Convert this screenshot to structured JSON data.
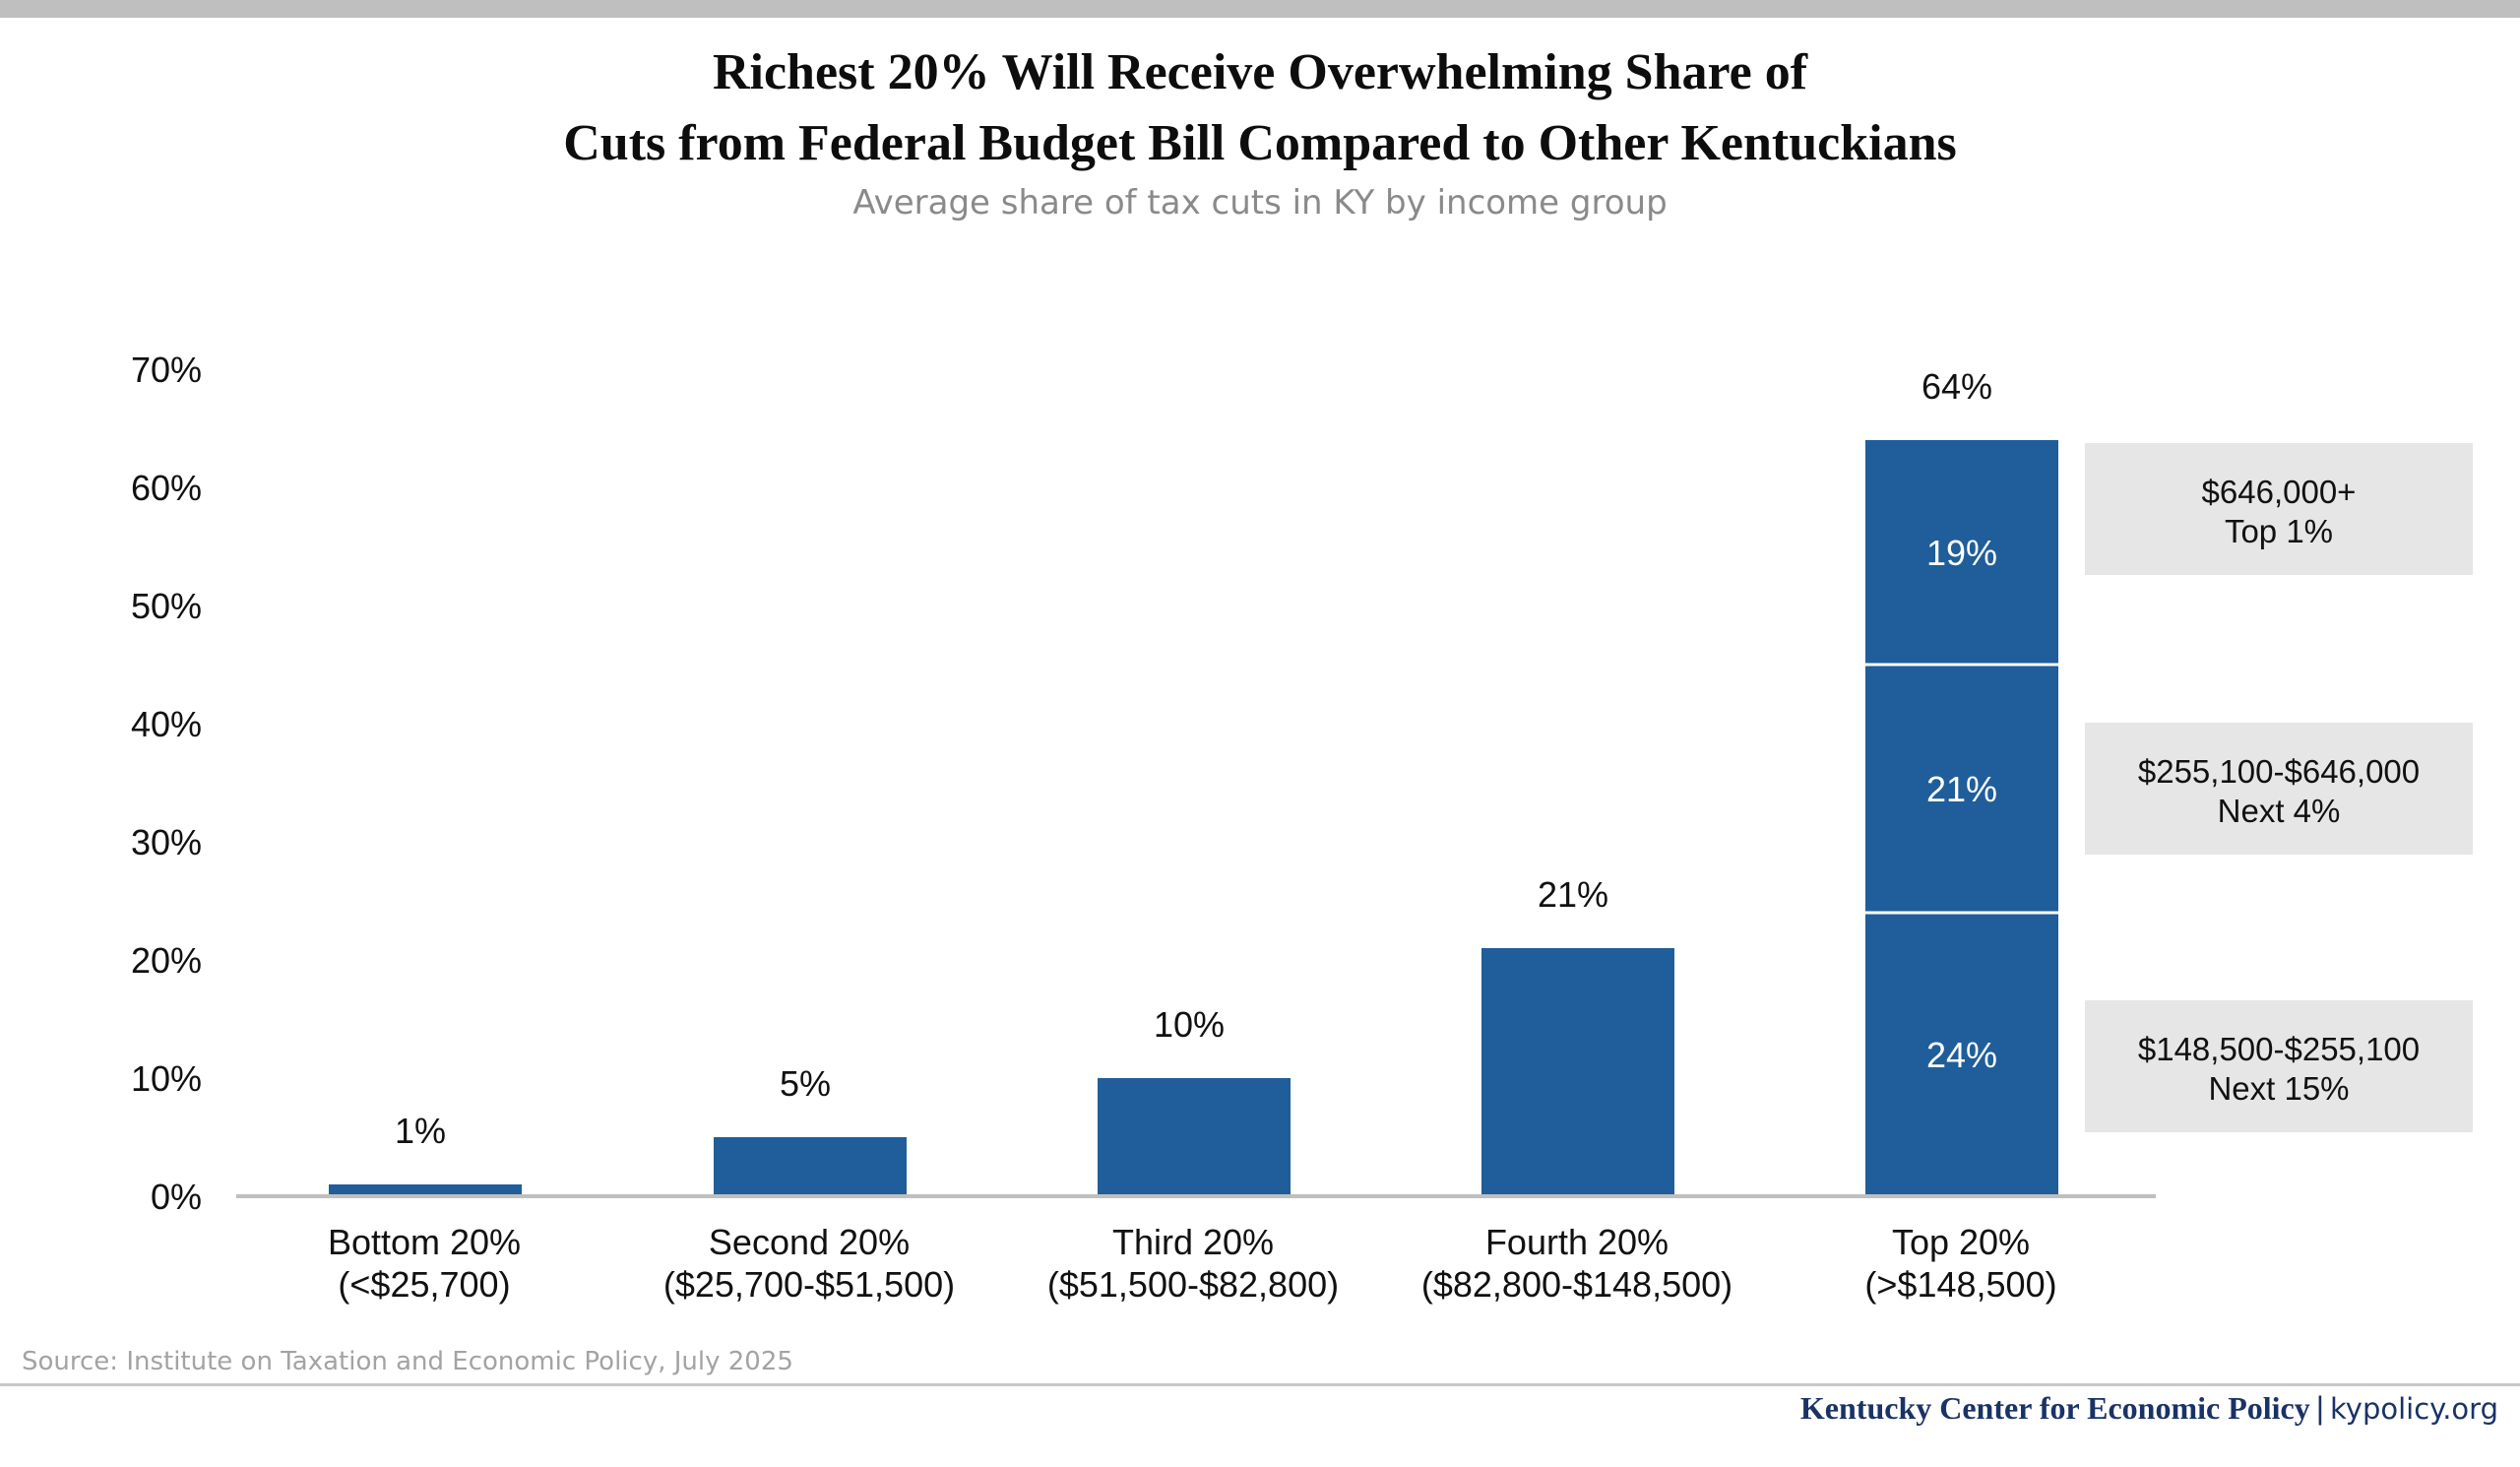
{
  "colors": {
    "bar": "#1f5e9a",
    "axis": "#bfbfbf",
    "legend_box": "#e6e6e6",
    "segment_divider": "#ffffff"
  },
  "chart_data": {
    "type": "bar",
    "title": "Richest 20% Will Receive Overwhelming Share of Cuts from Federal Budget Bill Compared to Other Kentuckians",
    "title_lines": [
      "Richest 20% Will Receive Overwhelming Share of",
      "Cuts from Federal Budget Bill Compared to Other Kentuckians"
    ],
    "subtitle": "Average share of tax cuts in KY by income group",
    "xlabel": "",
    "ylabel": "",
    "ylim": [
      0,
      70
    ],
    "y_ticks": [
      0,
      10,
      20,
      30,
      40,
      50,
      60,
      70
    ],
    "y_tick_labels": [
      "0%",
      "10%",
      "20%",
      "30%",
      "40%",
      "50%",
      "60%",
      "70%"
    ],
    "categories": [
      {
        "name": "Bottom 20%",
        "range": "(<$25,700)"
      },
      {
        "name": "Second 20%",
        "range": "($25,700-$51,500)"
      },
      {
        "name": "Third 20%",
        "range": "($51,500-$82,800)"
      },
      {
        "name": "Fourth 20%",
        "range": "($82,800-$148,500)"
      },
      {
        "name": "Top 20%",
        "range": "(>$148,500)"
      }
    ],
    "values": [
      1,
      5,
      10,
      21,
      64
    ],
    "value_labels": [
      "1%",
      "5%",
      "10%",
      "21%",
      "64%"
    ],
    "top_breakdown": [
      {
        "value": 24,
        "label": "24%",
        "income": "$148,500-$255,100",
        "group": "Next 15%"
      },
      {
        "value": 21,
        "label": "21%",
        "income": "$255,100-$646,000",
        "group": "Next 4%"
      },
      {
        "value": 19,
        "label": "19%",
        "income": "$646,000+",
        "group": "Top 1%"
      }
    ]
  },
  "footer": {
    "source": "Source: Institute on Taxation and Economic Policy, July 2025",
    "org": "Kentucky Center for Economic Policy",
    "separator": "|",
    "site": "kypolicy.org"
  }
}
